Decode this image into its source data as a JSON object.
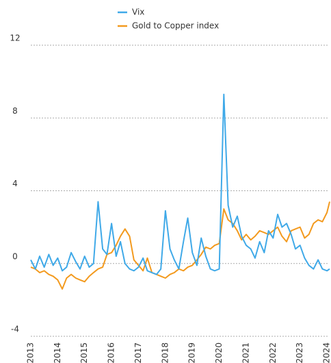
{
  "chart_data": {
    "type": "line",
    "x": [
      2013,
      2013.17,
      2013.33,
      2013.5,
      2013.67,
      2013.83,
      2014,
      2014.17,
      2014.33,
      2014.5,
      2014.67,
      2014.83,
      2015,
      2015.17,
      2015.33,
      2015.5,
      2015.67,
      2015.83,
      2016,
      2016.17,
      2016.33,
      2016.5,
      2016.67,
      2016.83,
      2017,
      2017.17,
      2017.33,
      2017.5,
      2017.67,
      2017.83,
      2018,
      2018.17,
      2018.33,
      2018.5,
      2018.67,
      2018.83,
      2019,
      2019.17,
      2019.33,
      2019.5,
      2019.67,
      2019.83,
      2020,
      2020.17,
      2020.33,
      2020.5,
      2020.67,
      2020.83,
      2021,
      2021.17,
      2021.33,
      2021.5,
      2021.67,
      2021.83,
      2022,
      2022.17,
      2022.33,
      2022.5,
      2022.67,
      2022.83,
      2023,
      2023.17,
      2023.33,
      2023.5,
      2023.67,
      2023.83,
      2024,
      2024.1
    ],
    "series": [
      {
        "name": "Vix",
        "color": "#3fa9e8",
        "values": [
          0.2,
          -0.3,
          0.4,
          -0.2,
          0.5,
          -0.1,
          0.3,
          -0.4,
          -0.2,
          0.6,
          0.1,
          -0.3,
          0.4,
          -0.2,
          0.0,
          3.4,
          0.8,
          0.5,
          2.2,
          0.4,
          1.2,
          0.0,
          -0.3,
          -0.4,
          -0.2,
          0.3,
          -0.4,
          -0.5,
          -0.6,
          -0.3,
          2.9,
          0.8,
          0.2,
          -0.3,
          1.2,
          2.5,
          0.6,
          -0.1,
          1.4,
          0.4,
          -0.3,
          -0.4,
          -0.3,
          9.3,
          3.2,
          2.0,
          2.6,
          1.5,
          1.0,
          0.8,
          0.3,
          1.2,
          0.6,
          1.8,
          1.4,
          2.7,
          2.0,
          2.2,
          1.6,
          0.8,
          1.0,
          0.3,
          -0.1,
          -0.3,
          0.2,
          -0.3,
          -0.4,
          -0.3
        ]
      },
      {
        "name": "Gold to Copper index",
        "color": "#f39a1e",
        "values": [
          -0.2,
          -0.3,
          -0.5,
          -0.4,
          -0.6,
          -0.7,
          -0.9,
          -1.4,
          -0.8,
          -0.6,
          -0.8,
          -0.9,
          -1.0,
          -0.7,
          -0.5,
          -0.3,
          -0.2,
          0.5,
          0.6,
          1.0,
          1.5,
          1.9,
          1.5,
          0.2,
          -0.1,
          -0.4,
          0.3,
          -0.5,
          -0.6,
          -0.7,
          -0.8,
          -0.6,
          -0.5,
          -0.3,
          -0.4,
          -0.2,
          -0.1,
          0.2,
          0.5,
          0.9,
          0.8,
          1.0,
          1.1,
          3.0,
          2.4,
          2.2,
          1.8,
          1.3,
          1.6,
          1.3,
          1.5,
          1.8,
          1.7,
          1.6,
          1.8,
          2.0,
          1.5,
          1.2,
          1.8,
          1.9,
          2.0,
          1.4,
          1.6,
          2.2,
          2.4,
          2.3,
          2.8,
          3.4
        ]
      }
    ],
    "xlim": [
      2013,
      2024.15
    ],
    "xticks": [
      2013,
      2014,
      2015,
      2016,
      2017,
      2018,
      2019,
      2020,
      2021,
      2022,
      2023,
      2024
    ],
    "ylim": [
      -4,
      12
    ],
    "yticks": [
      -4,
      0,
      4,
      8,
      12
    ],
    "grid": true,
    "legend": "top"
  }
}
